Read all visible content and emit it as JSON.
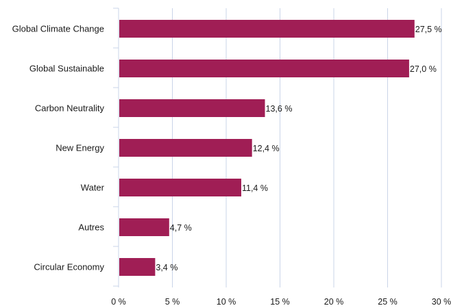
{
  "chart_data": {
    "type": "bar",
    "orientation": "horizontal",
    "categories": [
      "Global Climate Change",
      "Global Sustainable",
      "Carbon Neutrality",
      "New Energy",
      "Water",
      "Autres",
      "Circular Economy"
    ],
    "values": [
      27.5,
      27.0,
      13.6,
      12.4,
      11.4,
      4.7,
      3.4
    ],
    "value_labels": [
      "27,5 %",
      "27,0 %",
      "13,6 %",
      "12,4 %",
      "11,4 %",
      "4,7 %",
      "3,4 %"
    ],
    "xlim": [
      0,
      30
    ],
    "xticks": [
      0,
      5,
      10,
      15,
      20,
      25,
      30
    ],
    "xtick_labels": [
      "0 %",
      "5 %",
      "10 %",
      "15 %",
      "20 %",
      "25 %",
      "30 %"
    ],
    "grid": true,
    "bar_color": "#a01e55",
    "grid_color": "#c9d4e8",
    "title": "",
    "xlabel": "",
    "ylabel": ""
  }
}
